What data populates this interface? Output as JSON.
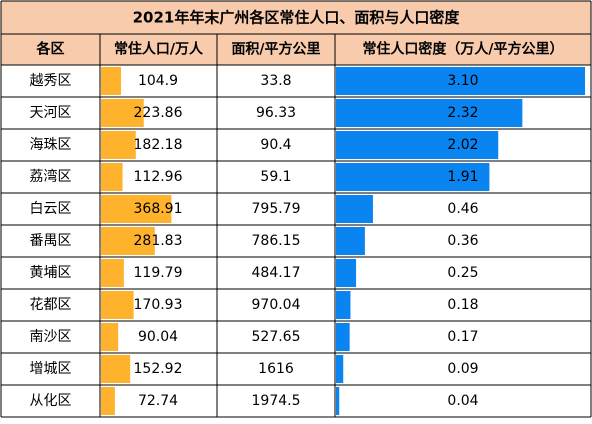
{
  "chart_data": {
    "type": "table",
    "title": "2021年年末广州各区常住人口、面积与人口密度",
    "columns": [
      "各区",
      "常住人口/万人",
      "面积/平方公里",
      "常住人口密度（万人/平方公里）"
    ],
    "rows": [
      {
        "district": "越秀区",
        "population": 104.9,
        "area": 33.8,
        "density": 3.1
      },
      {
        "district": "天河区",
        "population": 223.86,
        "area": 96.33,
        "density": 2.32
      },
      {
        "district": "海珠区",
        "population": 182.18,
        "area": 90.4,
        "density": 2.02
      },
      {
        "district": "荔湾区",
        "population": 112.96,
        "area": 59.1,
        "density": 1.91
      },
      {
        "district": "白云区",
        "population": 368.91,
        "area": 795.79,
        "density": 0.46
      },
      {
        "district": "番禺区",
        "population": 281.83,
        "area": 786.15,
        "density": 0.36
      },
      {
        "district": "黄埔区",
        "population": 119.79,
        "area": 484.17,
        "density": 0.25
      },
      {
        "district": "花都区",
        "population": 170.93,
        "area": 970.04,
        "density": 0.18
      },
      {
        "district": "南沙区",
        "population": 90.04,
        "area": 527.65,
        "density": 0.17
      },
      {
        "district": "增城区",
        "population": 152.92,
        "area": 1616,
        "density": 0.09
      },
      {
        "district": "从化区",
        "population": 72.74,
        "area": 1974.5,
        "density": 0.04
      }
    ],
    "display": {
      "population": [
        "104.9",
        "223.86",
        "182.18",
        "112.96",
        "368.91",
        "281.83",
        "119.79",
        "170.93",
        "90.04",
        "152.92",
        "72.74"
      ],
      "area": [
        "33.8",
        "96.33",
        "90.4",
        "59.1",
        "795.79",
        "786.15",
        "484.17",
        "970.04",
        "527.65",
        "1616",
        "1974.5"
      ],
      "density": [
        "3.10",
        "2.32",
        "2.02",
        "1.91",
        "0.46",
        "0.36",
        "0.25",
        "0.18",
        "0.17",
        "0.09",
        "0.04"
      ]
    },
    "population_bar_color": "#FFB22C",
    "density_bar_color": "#0A84F0",
    "header_color": "#F8CBAD",
    "title_color": "#F8CBAD"
  }
}
